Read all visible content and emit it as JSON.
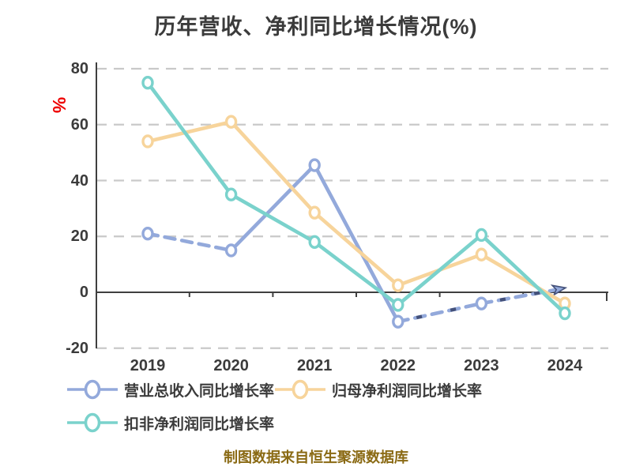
{
  "title": "历年营收、净利同比增长情况(%)",
  "footer": "制图数据来自恒生聚源数据库",
  "y_axis": {
    "unit_label": "%",
    "unit_label_color": "#ee0000",
    "tick_labels": [
      "80",
      "60",
      "40",
      "20",
      "0",
      "-20"
    ]
  },
  "x_axis": {
    "tick_labels": [
      "2019",
      "2020",
      "2021",
      "2022",
      "2023",
      "2024"
    ]
  },
  "legend": {
    "items": [
      {
        "label": "营业总收入同比增长率",
        "color": "#93a9db"
      },
      {
        "label": "归母净利润同比增长率",
        "color": "#f7d49b"
      },
      {
        "label": "扣非净利润同比增长率",
        "color": "#7ad2cc"
      }
    ]
  },
  "colors": {
    "text": "#3b3b3b",
    "axis": "#3f3f3f",
    "grid": "#c9c9c9",
    "background": "#ffffff",
    "footer_text": "#8a6a14",
    "blue_series": "#93a9db",
    "blue_dark_dash": "#44517a",
    "orange_series": "#f7d49b",
    "teal_series": "#7ad2cc"
  },
  "chart_data": {
    "type": "line",
    "title": "历年营收、净利同比增长情况(%)",
    "categories": [
      "2019",
      "2020",
      "2021",
      "2022",
      "2023",
      "2024"
    ],
    "series": [
      {
        "name": "营业总收入同比增长率",
        "color": "#93a9db",
        "values": [
          21,
          15,
          45.5,
          -10.5,
          -4,
          1.5
        ],
        "line_style": "mixed",
        "dashed_segments": [
          true,
          false,
          false,
          true,
          true
        ],
        "dark_dash_overlay_segments": [
          false,
          false,
          false,
          true,
          true
        ],
        "arrow_at_end": true
      },
      {
        "name": "归母净利润同比增长率",
        "color": "#f7d49b",
        "values": [
          54,
          61,
          28.5,
          2.5,
          13.5,
          -4
        ],
        "line_style": "solid",
        "dashed_segments": [
          false,
          false,
          false,
          false,
          false
        ],
        "dark_dash_overlay_segments": [
          false,
          false,
          false,
          false,
          false
        ],
        "arrow_at_end": false
      },
      {
        "name": "扣非净利润同比增长率",
        "color": "#7ad2cc",
        "values": [
          75,
          35,
          18,
          -4.5,
          20.5,
          -7.5
        ],
        "line_style": "solid",
        "dashed_segments": [
          false,
          false,
          false,
          false,
          false
        ],
        "dark_dash_overlay_segments": [
          false,
          false,
          false,
          false,
          false
        ],
        "arrow_at_end": false
      }
    ],
    "ylabel": "%",
    "xlabel": "",
    "ylim": [
      -20,
      80
    ],
    "y_tick_step": 20,
    "grid": "dashed horizontal lines, solid zero axis",
    "legend_position": "bottom-left, two rows",
    "marker": "white-filled ellipse with colored ring"
  }
}
